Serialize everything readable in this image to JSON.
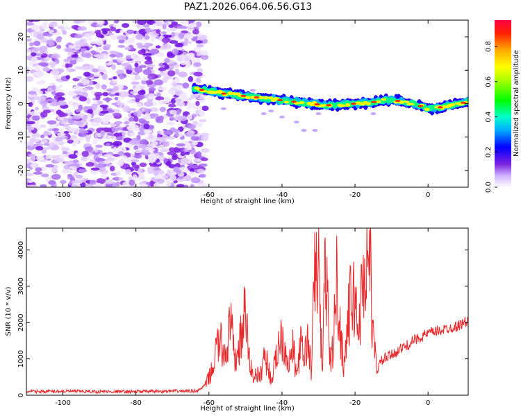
{
  "figure": {
    "title": "PAZ1.2026.064.06.56.G13"
  },
  "colors": {
    "snr_line": "#e8282a",
    "axis": "#000000",
    "spectrogram_noise": "#8a2be2"
  },
  "chart_data": [
    {
      "type": "heatmap",
      "title": "PAZ1.2026.064.06.56.G13",
      "xlabel": "Height of straight line (km)",
      "ylabel": "Frequency (Hz)",
      "xlim": [
        -110,
        11
      ],
      "ylim": [
        -25,
        25
      ],
      "xticks": [
        -100,
        -80,
        -60,
        -40,
        -20,
        0
      ],
      "yticks": [
        -20,
        -10,
        0,
        10,
        20
      ],
      "noise_region_x": [
        -110,
        -61
      ],
      "signal_trace": {
        "x": [
          -64,
          -60,
          -56,
          -52,
          -48,
          -44,
          -40,
          -36,
          -32,
          -28,
          -24,
          -20,
          -16,
          -12,
          -8,
          -4,
          0,
          4,
          8,
          11
        ],
        "freq_hz": [
          4.5,
          3.8,
          3.0,
          2.5,
          2.0,
          1.5,
          1.0,
          0.5,
          0.0,
          -0.5,
          -0.3,
          0.0,
          0.3,
          1.0,
          0.8,
          0.0,
          -1.5,
          -1.0,
          0.0,
          0.5
        ]
      },
      "colorbar": {
        "label": "Normalized spectral amplitude",
        "range": [
          0.0,
          0.95
        ],
        "ticks": [
          "0.0",
          "0.2",
          "0.4",
          "0.6",
          "0.8"
        ]
      }
    },
    {
      "type": "line",
      "xlabel": "Height of straight line (km)",
      "ylabel": "SNR (10 * v/v)",
      "xlim": [
        -110,
        11
      ],
      "ylim": [
        0,
        4600
      ],
      "xticks": [
        -100,
        -80,
        -60,
        -40,
        -20,
        0
      ],
      "yticks": [
        0,
        1000,
        2000,
        3000,
        4000
      ],
      "series": [
        {
          "name": "SNR",
          "x": [
            -110,
            -100,
            -90,
            -80,
            -70,
            -63,
            -61,
            -59,
            -58,
            -57,
            -56,
            -55,
            -54,
            -53,
            -52,
            -51,
            -50,
            -49,
            -48,
            -47,
            -46,
            -45,
            -44,
            -43,
            -42,
            -41,
            -40,
            -39,
            -38,
            -37,
            -36,
            -35,
            -34,
            -33,
            -32,
            -31,
            -30,
            -29,
            -28,
            -27,
            -26,
            -25,
            -24,
            -23,
            -22,
            -21,
            -20,
            -19,
            -18,
            -17,
            -16,
            -15,
            -14,
            -13,
            -12,
            -10,
            -8,
            -6,
            -4,
            -2,
            0,
            2,
            4,
            6,
            8,
            10,
            11
          ],
          "values": [
            100,
            110,
            100,
            100,
            110,
            120,
            280,
            700,
            1300,
            1500,
            1100,
            1400,
            2000,
            900,
            1200,
            1700,
            2300,
            1000,
            500,
            600,
            450,
            1100,
            900,
            400,
            800,
            1400,
            1700,
            1200,
            900,
            1300,
            500,
            1400,
            1000,
            1500,
            700,
            3300,
            3600,
            600,
            4000,
            900,
            1300,
            3200,
            1700,
            800,
            2000,
            2700,
            2600,
            1800,
            3000,
            3500,
            4000,
            1500,
            700,
            900,
            1000,
            1100,
            1250,
            1350,
            1500,
            1600,
            1700,
            1750,
            1800,
            1850,
            1900,
            2000,
            2050
          ]
        }
      ]
    }
  ]
}
